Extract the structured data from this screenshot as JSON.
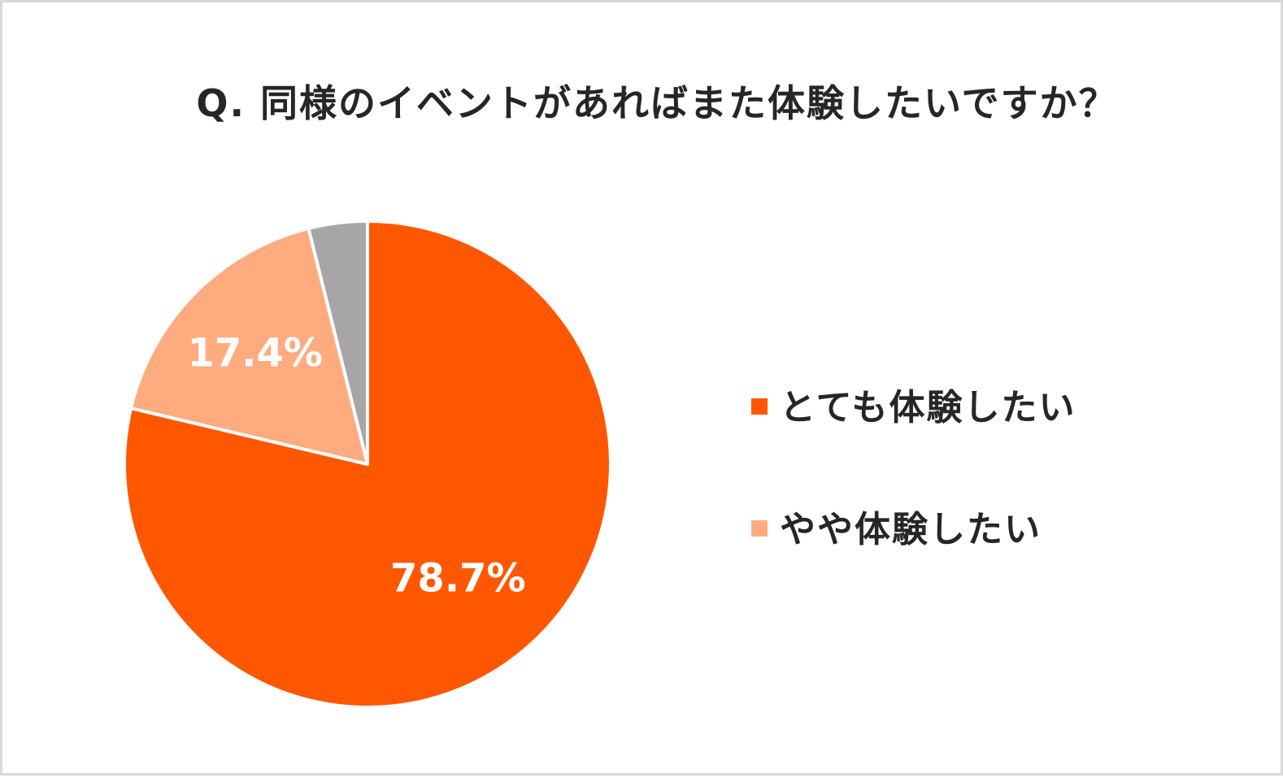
{
  "chart_data": {
    "type": "pie",
    "title": "Q. 同様のイベントがあればまた体験したいですか？",
    "slices": [
      {
        "label": "とても体験したい",
        "value": 78.7,
        "data_label": "78.7%",
        "color": "#ff5700"
      },
      {
        "label": "やや体験したい",
        "value": 17.4,
        "data_label": "17.4%",
        "color": "#ffab80"
      },
      {
        "label": "",
        "value": 3.9,
        "data_label": "",
        "color": "#a6a6a6"
      }
    ],
    "legend": [
      "とても体験したい",
      "やや体験したい"
    ],
    "legend_position": "right",
    "start_angle": "12 o'clock",
    "direction": "clockwise"
  }
}
